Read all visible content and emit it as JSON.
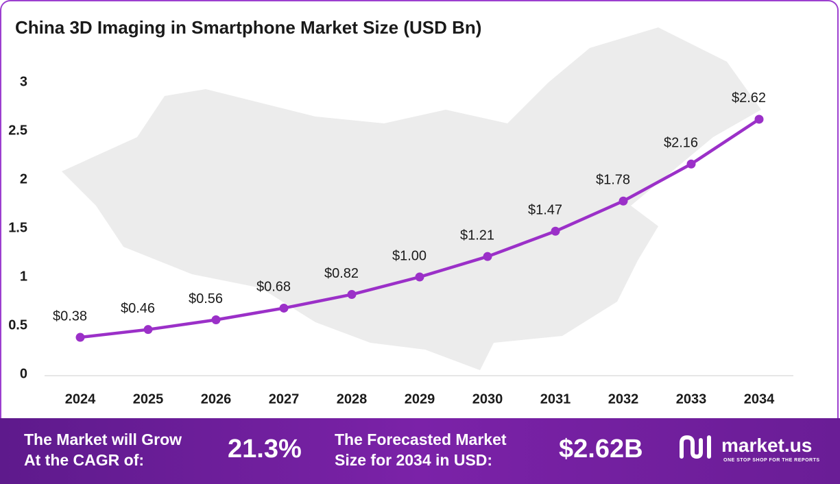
{
  "chart_data": {
    "type": "line",
    "title": "China 3D Imaging in Smartphone Market Size (USD Bn)",
    "categories": [
      "2024",
      "2025",
      "2026",
      "2027",
      "2028",
      "2029",
      "2030",
      "2031",
      "2032",
      "2033",
      "2034"
    ],
    "values": [
      0.38,
      0.46,
      0.56,
      0.68,
      0.82,
      1.0,
      1.21,
      1.47,
      1.78,
      2.16,
      2.62
    ],
    "value_labels": [
      "$0.38",
      "$0.46",
      "$0.56",
      "$0.68",
      "$0.82",
      "$1.00",
      "$1.21",
      "$1.47",
      "$1.78",
      "$2.16",
      "$2.62"
    ],
    "color": "#9b30c8",
    "ylim": [
      0,
      3
    ],
    "yticks": [
      0,
      0.5,
      1,
      1.5,
      2,
      2.5,
      3
    ],
    "grid": false
  },
  "footer": {
    "cagr_text": [
      "The Market will Grow",
      "At the CAGR of:"
    ],
    "cagr_value": "21.3%",
    "forecast_text": [
      "The Forecasted Market",
      "Size for 2034 in USD:"
    ],
    "forecast_value": "$2.62B",
    "brand": "market.us",
    "tagline": "ONE STOP SHOP FOR THE REPORTS"
  }
}
